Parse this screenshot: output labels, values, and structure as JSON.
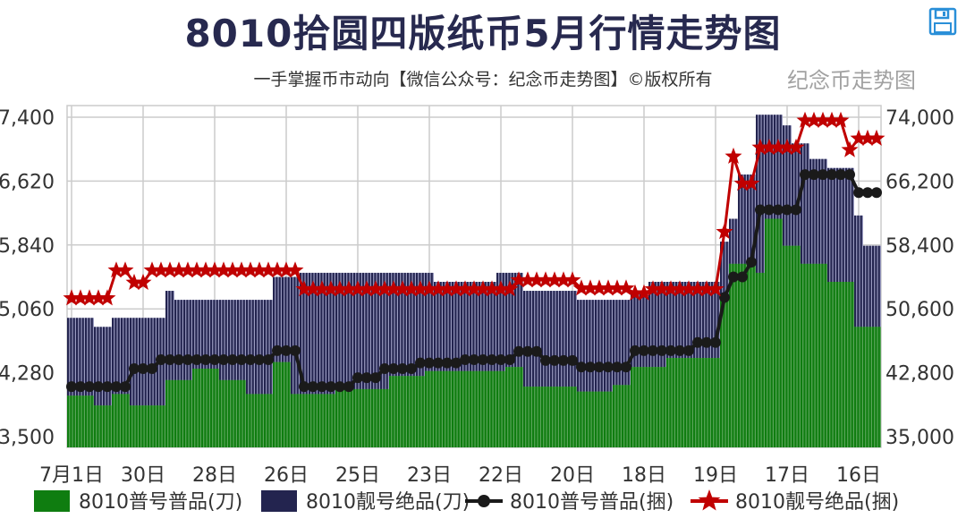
{
  "header": {
    "title": "8010拾圆四版纸币5月行情走势图",
    "subtitle": "一手掌握币市动向【微信公众号：纪念币走势图】©版权所有",
    "save_icon": "save-icon"
  },
  "watermark": "纪念币走势图",
  "chart_data": {
    "type": "bar+line",
    "title": "8010拾圆四版纸币5月行情走势图",
    "x_tick_labels": [
      "7月1日",
      "30日",
      "28日",
      "26日",
      "25日",
      "23日",
      "22日",
      "20日",
      "18日",
      "19日",
      "17日",
      "16日"
    ],
    "x_tick_every": 8,
    "left_axis": {
      "ticks": [
        "3,500",
        "4,280",
        "5,060",
        "5,840",
        "6,620",
        "7,400"
      ],
      "ylim": [
        3500,
        7400
      ]
    },
    "right_axis": {
      "ticks": [
        "35,000",
        "42,800",
        "50,600",
        "58,400",
        "66,200",
        "74,000"
      ],
      "ylim": [
        35000,
        74000
      ]
    },
    "grid": true,
    "legend_position": "bottom",
    "colors": {
      "green": "#0f7d10",
      "navy": "#23244f",
      "black": "#1a1a1a",
      "red": "#c00000"
    },
    "series": [
      {
        "name": "8010普号普品(刀)",
        "type": "bar",
        "axis": "left",
        "color": "#0f7d10",
        "values": [
          4000,
          4000,
          4000,
          3880,
          3880,
          4020,
          4020,
          3880,
          3880,
          3880,
          3880,
          4190,
          4190,
          4190,
          4330,
          4330,
          4330,
          4190,
          4190,
          4190,
          4020,
          4020,
          4020,
          4410,
          4410,
          4020,
          4020,
          4020,
          4020,
          4020,
          4080,
          4080,
          4080,
          4080,
          4080,
          4080,
          4240,
          4240,
          4240,
          4240,
          4300,
          4300,
          4300,
          4300,
          4300,
          4300,
          4300,
          4300,
          4300,
          4350,
          4350,
          4110,
          4110,
          4110,
          4110,
          4110,
          4110,
          4050,
          4050,
          4050,
          4050,
          4130,
          4130,
          4350,
          4350,
          4350,
          4350,
          4460,
          4460,
          4460,
          4460,
          4460,
          4460,
          5230,
          5610,
          5610,
          5610,
          5500,
          6160,
          6160,
          5830,
          5830,
          5610,
          5610,
          5610,
          5390,
          5390,
          5390,
          4840,
          4840,
          4840
        ]
      },
      {
        "name": "8010靓号绝品(刀)",
        "type": "bar",
        "axis": "left",
        "color": "#23244f",
        "values": [
          4950,
          4950,
          4950,
          4840,
          4840,
          4950,
          4950,
          4950,
          4950,
          4950,
          4950,
          5280,
          5170,
          5170,
          5170,
          5170,
          5170,
          5170,
          5170,
          5170,
          5170,
          5170,
          5170,
          5450,
          5450,
          5450,
          5500,
          5500,
          5500,
          5500,
          5500,
          5500,
          5500,
          5500,
          5500,
          5500,
          5500,
          5500,
          5500,
          5500,
          5500,
          5390,
          5390,
          5390,
          5390,
          5390,
          5390,
          5390,
          5500,
          5500,
          5500,
          5280,
          5280,
          5280,
          5280,
          5280,
          5280,
          5170,
          5170,
          5170,
          5170,
          5170,
          5170,
          5280,
          5280,
          5390,
          5390,
          5390,
          5390,
          5390,
          5390,
          5390,
          5390,
          5880,
          6160,
          6700,
          6700,
          7430,
          7430,
          7430,
          7300,
          7080,
          7080,
          6890,
          6890,
          6780,
          6780,
          6780,
          6200,
          5830,
          5830
        ]
      },
      {
        "name": "8010普号普品(捆)",
        "type": "line",
        "axis": "right",
        "color": "#1a1a1a",
        "marker": "circle",
        "values": [
          41100,
          41100,
          41100,
          41100,
          41100,
          41100,
          41100,
          43300,
          43300,
          43300,
          44400,
          44400,
          44400,
          44400,
          44400,
          44400,
          44400,
          44400,
          44400,
          44400,
          44400,
          44400,
          44400,
          45500,
          45500,
          45500,
          41100,
          41100,
          41100,
          41100,
          41100,
          41100,
          42200,
          42200,
          42200,
          43300,
          43300,
          43300,
          43300,
          44000,
          44000,
          44000,
          44000,
          44000,
          44400,
          44400,
          44400,
          44400,
          44400,
          44400,
          45400,
          45400,
          45400,
          44300,
          44300,
          44300,
          44300,
          43500,
          43500,
          43500,
          43500,
          43500,
          43500,
          45500,
          45500,
          45500,
          45500,
          45500,
          45500,
          45500,
          46500,
          46500,
          46500,
          52000,
          54500,
          54500,
          56300,
          62700,
          62700,
          62700,
          62700,
          62700,
          67000,
          67000,
          67000,
          67000,
          67000,
          67000,
          64800,
          64800,
          64800
        ]
      },
      {
        "name": "8010靓号绝品(捆)",
        "type": "line",
        "axis": "right",
        "color": "#c00000",
        "marker": "star",
        "values": [
          51900,
          51900,
          51900,
          51900,
          51900,
          55300,
          55300,
          53800,
          53800,
          55300,
          55300,
          55300,
          55300,
          55300,
          55300,
          55300,
          55300,
          55300,
          55300,
          55300,
          55300,
          55300,
          55300,
          55300,
          55300,
          55300,
          53000,
          53000,
          53000,
          53000,
          53000,
          53000,
          53000,
          53000,
          53000,
          53000,
          53000,
          53000,
          53000,
          53000,
          53000,
          53000,
          53000,
          53000,
          53000,
          53000,
          53000,
          53000,
          53000,
          53000,
          54100,
          54100,
          54100,
          54100,
          54100,
          54100,
          54100,
          53100,
          53100,
          53100,
          53100,
          53100,
          53100,
          52500,
          52500,
          53000,
          53000,
          53000,
          53000,
          53000,
          53000,
          53000,
          53000,
          60000,
          69200,
          65900,
          65900,
          70300,
          70300,
          70300,
          70300,
          70300,
          73600,
          73600,
          73600,
          73600,
          73600,
          70000,
          71400,
          71400,
          71400
        ]
      }
    ]
  }
}
